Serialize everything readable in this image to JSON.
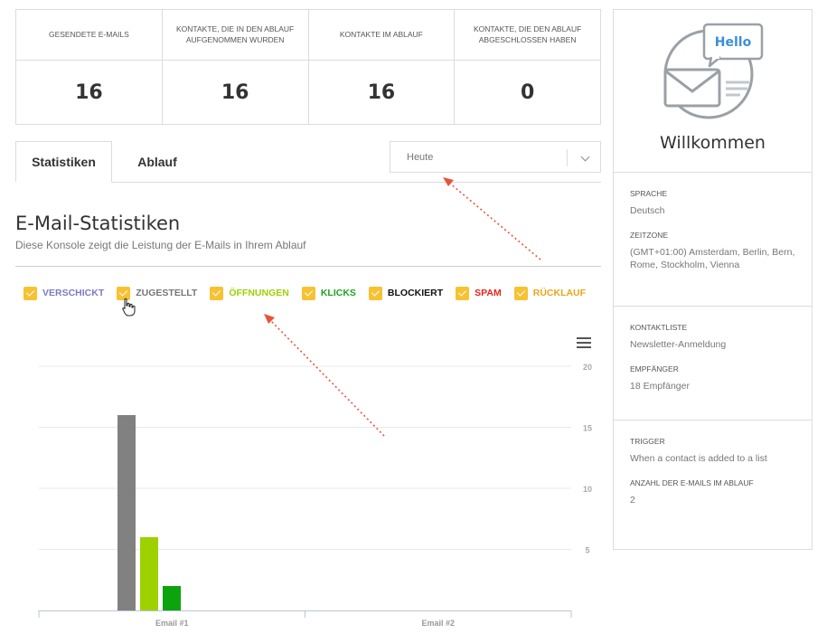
{
  "stats": [
    {
      "label": "GESENDETE E-MAILS",
      "value": "16"
    },
    {
      "label": "KONTAKTE, DIE IN DEN ABLAUF AUFGENOMMEN WURDEN",
      "value": "16"
    },
    {
      "label": "KONTAKTE IM ABLAUF",
      "value": "16"
    },
    {
      "label": "KONTAKTE, DIE DEN ABLAUF ABGESCHLOSSEN HABEN",
      "value": "0"
    }
  ],
  "tabs": {
    "statistics": "Statistiken",
    "flow": "Ablauf"
  },
  "period_select": {
    "value": "Heute"
  },
  "section": {
    "title": "E-Mail-Statistiken",
    "subtitle": "Diese Konsole zeigt die Leistung der E-Mails in Ihrem Ablauf"
  },
  "legend": [
    {
      "label": "VERSCHICKT",
      "color": "#7b7bc6"
    },
    {
      "label": "ZUGESTELLT",
      "color": "#777777"
    },
    {
      "label": "ÖFFNUNGEN",
      "color": "#9dd100"
    },
    {
      "label": "KLICKS",
      "color": "#20a320"
    },
    {
      "label": "BLOCKIERT",
      "color": "#111111"
    },
    {
      "label": "SPAM",
      "color": "#e8231d"
    },
    {
      "label": "RÜCKLAUF",
      "color": "#e9a51a"
    }
  ],
  "chart_data": {
    "type": "bar",
    "categories": [
      "Email #1",
      "Email #2"
    ],
    "series": [
      {
        "name": "Zugestellt",
        "color": "#818181",
        "values": [
          16,
          0
        ]
      },
      {
        "name": "Öffnungen",
        "color": "#9dd100",
        "values": [
          6,
          0
        ]
      },
      {
        "name": "Klicks",
        "color": "#0ca30c",
        "values": [
          2,
          0
        ]
      }
    ],
    "yticks": [
      5,
      10,
      15,
      20
    ],
    "ylim": [
      0,
      20
    ],
    "grid": true
  },
  "panel": {
    "bubble": "Hello",
    "welcome": "Willkommen",
    "sections": [
      {
        "items": [
          {
            "label": "SPRACHE",
            "value": "Deutsch"
          },
          {
            "label": "ZEITZONE",
            "value": "(GMT+01:00) Amsterdam, Berlin, Bern, Rome, Stockholm, Vienna"
          }
        ]
      },
      {
        "items": [
          {
            "label": "KONTAKTLISTE",
            "value": "Newsletter-Anmeldung"
          },
          {
            "label": "EMPFÄNGER",
            "value": "18 Empfänger"
          }
        ]
      },
      {
        "items": [
          {
            "label": "TRIGGER",
            "value": "When a contact is added to a list"
          },
          {
            "label": "ANZAHL DER E-MAILS IM ABLAUF",
            "value": "2"
          }
        ]
      }
    ]
  },
  "annotation_color": "#e8543a"
}
